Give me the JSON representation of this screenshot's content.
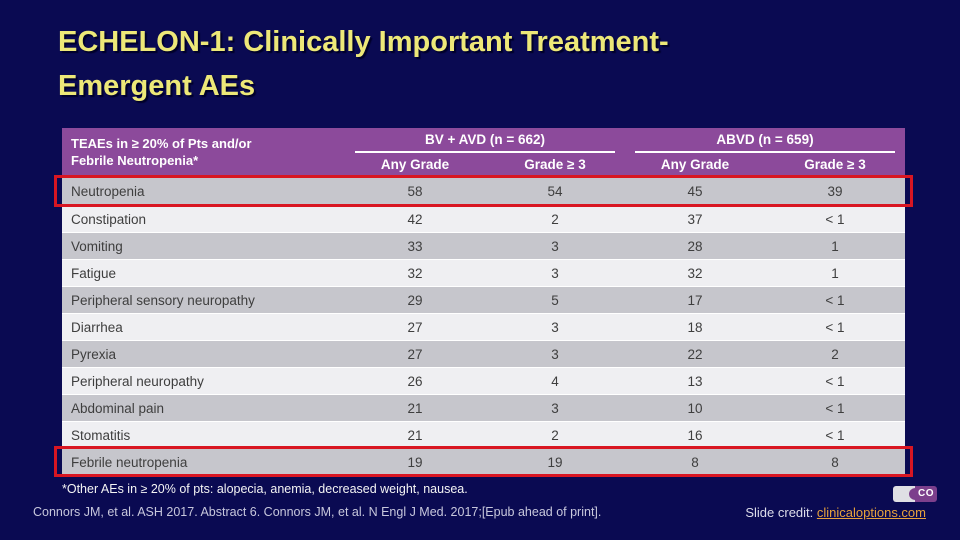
{
  "slide": {
    "title_line1": "ECHELON-1: Clinically Important Treatment-",
    "title_line2": "Emergent AEs"
  },
  "table": {
    "header_line1": "TEAEs in ≥ 20% of Pts and/or",
    "header_line2": "Febrile Neutropenia*",
    "groups": [
      {
        "label": "BV + AVD (n = 662)",
        "subcols": [
          "Any Grade",
          "Grade ≥ 3"
        ]
      },
      {
        "label": "ABVD (n = 659)",
        "subcols": [
          "Any Grade",
          "Grade ≥ 3"
        ]
      }
    ],
    "rows": [
      {
        "label": "Neutropenia",
        "values": [
          "58",
          "54",
          "45",
          "39"
        ],
        "highlight": true
      },
      {
        "label": "Constipation",
        "values": [
          "42",
          "2",
          "37",
          "< 1"
        ],
        "highlight": false
      },
      {
        "label": "Vomiting",
        "values": [
          "33",
          "3",
          "28",
          "1"
        ],
        "highlight": false
      },
      {
        "label": "Fatigue",
        "values": [
          "32",
          "3",
          "32",
          "1"
        ],
        "highlight": false
      },
      {
        "label": "Peripheral sensory neuropathy",
        "values": [
          "29",
          "5",
          "17",
          "< 1"
        ],
        "highlight": false
      },
      {
        "label": "Diarrhea",
        "values": [
          "27",
          "3",
          "18",
          "< 1"
        ],
        "highlight": false
      },
      {
        "label": "Pyrexia",
        "values": [
          "27",
          "3",
          "22",
          "2"
        ],
        "highlight": false
      },
      {
        "label": "Peripheral neuropathy",
        "values": [
          "26",
          "4",
          "13",
          "< 1"
        ],
        "highlight": false
      },
      {
        "label": "Abdominal pain",
        "values": [
          "21",
          "3",
          "10",
          "< 1"
        ],
        "highlight": false
      },
      {
        "label": "Stomatitis",
        "values": [
          "21",
          "2",
          "16",
          "< 1"
        ],
        "highlight": false
      },
      {
        "label": "Febrile neutropenia",
        "values": [
          "19",
          "19",
          "8",
          "8"
        ],
        "highlight": true
      }
    ]
  },
  "footer": {
    "footnote": "*Other AEs in ≥ 20% of pts: alopecia, anemia, decreased weight, nausea.",
    "citation": "Connors JM, et al. ASH 2017. Abstract 6. Connors JM, et al. N Engl J Med. 2017;[Epub ahead of print].",
    "credit_label": "Slide credit: ",
    "credit_link": "clinicaloptions.com",
    "logo_text": "CO"
  },
  "colors": {
    "background": "#0A0A52",
    "title_yellow": "#EDE878",
    "header_purple": "#8C4A9B",
    "row_gray": "#C6C6CC",
    "row_light": "#EFEFF2",
    "highlight_red": "#D91622",
    "link_orange": "#E8A23C"
  }
}
